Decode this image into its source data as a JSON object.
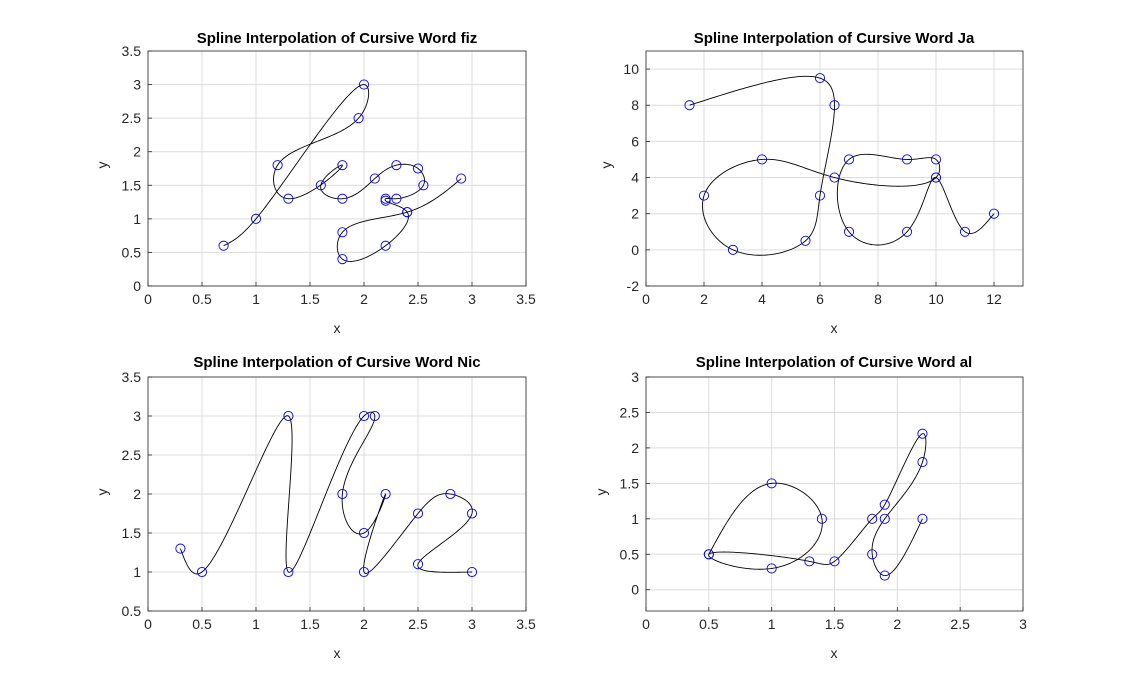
{
  "chart_data": [
    {
      "type": "line",
      "title": "Spline Interpolation of Cursive Word fiz",
      "xlabel": "x",
      "ylabel": "y",
      "xlim": [
        0,
        3.5
      ],
      "ylim": [
        0,
        3.5
      ],
      "xticks": [
        0,
        0.5,
        1,
        1.5,
        2,
        2.5,
        3,
        3.5
      ],
      "yticks": [
        0,
        0.5,
        1,
        1.5,
        2,
        2.5,
        3,
        3.5
      ],
      "xtick_labels": [
        "0",
        "0.5",
        "1",
        "1.5",
        "2",
        "2.5",
        "3",
        "3.5"
      ],
      "ytick_labels": [
        "0",
        "0.5",
        "1",
        "1.5",
        "2",
        "2.5",
        "3",
        "3.5"
      ],
      "grid": true,
      "x": [
        0.7,
        1.0,
        2.0,
        1.95,
        1.2,
        1.3,
        1.8,
        1.6,
        1.8,
        2.1,
        2.3,
        2.5,
        2.55,
        2.3,
        2.2,
        2.2,
        2.4,
        2.2,
        1.8,
        1.8,
        2.4,
        2.9
      ],
      "y": [
        0.6,
        1.0,
        3.0,
        2.5,
        1.8,
        1.3,
        1.8,
        1.5,
        1.3,
        1.6,
        1.8,
        1.75,
        1.5,
        1.3,
        1.3,
        1.27,
        1.1,
        0.6,
        0.4,
        0.8,
        1.1,
        1.6
      ]
    },
    {
      "type": "line",
      "title": "Spline Interpolation of Cursive Word Ja",
      "xlabel": "x",
      "ylabel": "y",
      "xlim": [
        0,
        13
      ],
      "ylim": [
        -2,
        11
      ],
      "xticks": [
        0,
        2,
        4,
        6,
        8,
        10,
        12
      ],
      "yticks": [
        -2,
        0,
        2,
        4,
        6,
        8,
        10
      ],
      "xtick_labels": [
        "0",
        "2",
        "4",
        "6",
        "8",
        "10",
        "12"
      ],
      "ytick_labels": [
        "-2",
        "0",
        "2",
        "4",
        "6",
        "8",
        "10"
      ],
      "grid": true,
      "x": [
        1.5,
        6.0,
        6.5,
        6.0,
        5.5,
        3.0,
        2.0,
        4.0,
        6.5,
        10.0,
        10.0,
        9.0,
        7.0,
        7.0,
        9.0,
        10.0,
        11.0,
        12.0
      ],
      "y": [
        8.0,
        9.5,
        8.0,
        3.0,
        0.5,
        0.0,
        3.0,
        5.0,
        4.0,
        4.0,
        5.0,
        5.0,
        5.0,
        1.0,
        1.0,
        4.0,
        1.0,
        2.0
      ]
    },
    {
      "type": "line",
      "title": "Spline Interpolation of Cursive Word Nic",
      "xlabel": "x",
      "ylabel": "y",
      "xlim": [
        0,
        3.5
      ],
      "ylim": [
        0.5,
        3.5
      ],
      "xticks": [
        0,
        0.5,
        1,
        1.5,
        2,
        2.5,
        3,
        3.5
      ],
      "yticks": [
        0.5,
        1,
        1.5,
        2,
        2.5,
        3,
        3.5
      ],
      "xtick_labels": [
        "0",
        "0.5",
        "1",
        "1.5",
        "2",
        "2.5",
        "3",
        "3.5"
      ],
      "ytick_labels": [
        "0.5",
        "1",
        "1.5",
        "2",
        "2.5",
        "3",
        "3.5"
      ],
      "grid": true,
      "x": [
        0.3,
        0.5,
        1.3,
        1.3,
        2.0,
        2.1,
        1.8,
        2.0,
        2.2,
        2.0,
        2.5,
        2.8,
        3.0,
        2.5,
        3.0
      ],
      "y": [
        1.3,
        1.0,
        3.0,
        1.0,
        3.0,
        3.0,
        2.0,
        1.5,
        2.0,
        1.0,
        1.75,
        2.0,
        1.75,
        1.1,
        1.0
      ]
    },
    {
      "type": "line",
      "title": "Spline Interpolation of Cursive Word al",
      "xlabel": "x",
      "ylabel": "y",
      "xlim": [
        0,
        3
      ],
      "ylim": [
        -0.3,
        3
      ],
      "xticks": [
        0,
        0.5,
        1,
        1.5,
        2,
        2.5,
        3
      ],
      "yticks": [
        0,
        0.5,
        1,
        1.5,
        2,
        2.5,
        3
      ],
      "xtick_labels": [
        "0",
        "0.5",
        "1",
        "1.5",
        "2",
        "2.5",
        "3"
      ],
      "ytick_labels": [
        "0",
        "0.5",
        "1",
        "1.5",
        "2",
        "2.5",
        "3"
      ],
      "grid": true,
      "x": [
        0.5,
        1.0,
        1.4,
        1.0,
        0.5,
        1.3,
        1.5,
        1.8,
        1.9,
        2.2,
        2.2,
        1.9,
        1.8,
        1.9,
        2.2
      ],
      "y": [
        0.5,
        1.5,
        1.0,
        0.3,
        0.5,
        0.4,
        0.4,
        1.0,
        1.2,
        2.2,
        1.8,
        1.0,
        0.5,
        0.2,
        1.0
      ]
    }
  ]
}
